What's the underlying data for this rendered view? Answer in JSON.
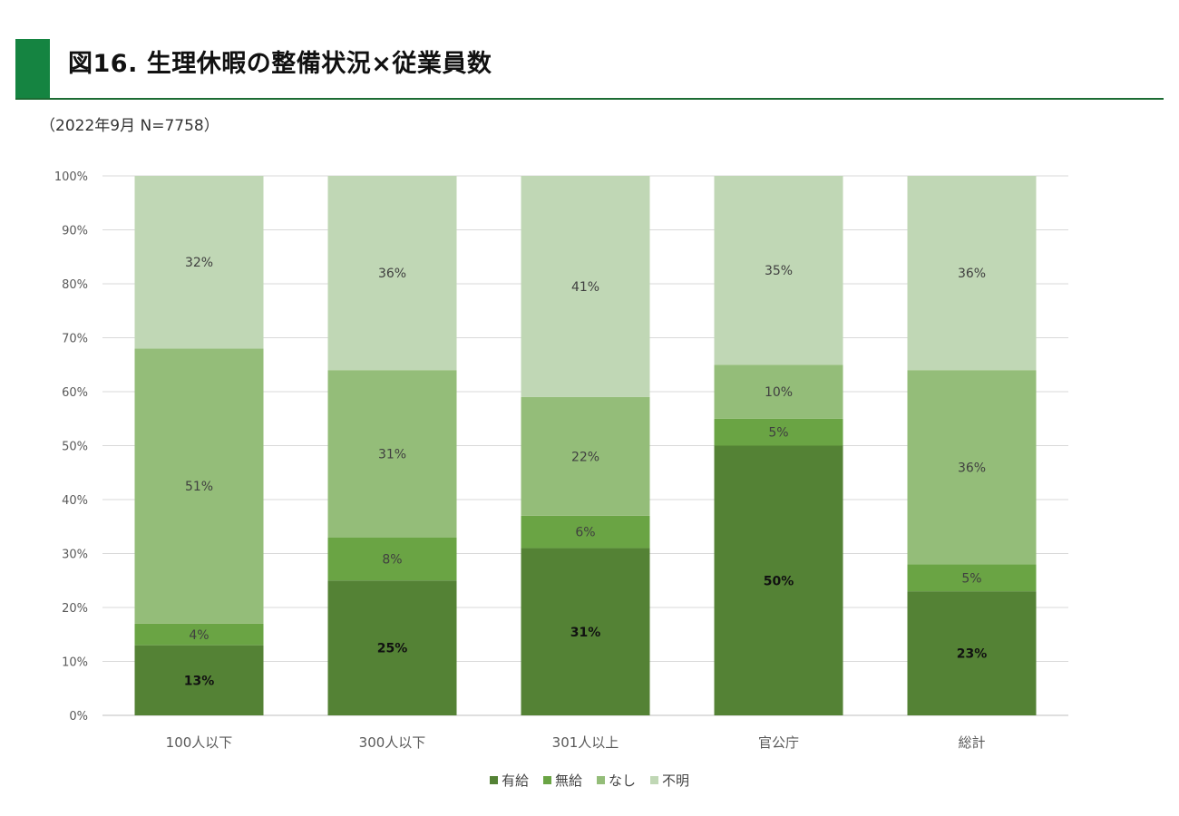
{
  "header": {
    "title": "図16. 生理休暇の整備状況×従業員数",
    "subtitle": "（2022年9月 N=7758）",
    "accent_color": "#158441"
  },
  "chart_data": {
    "type": "bar",
    "stacked": true,
    "categories": [
      "100人以下",
      "300人以下",
      "301人以上",
      "官公庁",
      "総計"
    ],
    "series": [
      {
        "name": "有給",
        "color": "#548235",
        "values": [
          13,
          25,
          31,
          50,
          23
        ],
        "labels": [
          "13%",
          "25%",
          "31%",
          "50%",
          "23%"
        ]
      },
      {
        "name": "無給",
        "color": "#6aa444",
        "values": [
          4,
          8,
          6,
          5,
          5
        ],
        "labels": [
          "4%",
          "8%",
          "6%",
          "5%",
          "5%"
        ]
      },
      {
        "name": "なし",
        "color": "#94bd79",
        "values": [
          51,
          31,
          22,
          10,
          36
        ],
        "labels": [
          "51%",
          "31%",
          "22%",
          "10%",
          "36%"
        ]
      },
      {
        "name": "不明",
        "color": "#c0d7b5",
        "values": [
          32,
          36,
          41,
          35,
          36
        ],
        "labels": [
          "32%",
          "36%",
          "41%",
          "35%",
          "36%"
        ]
      }
    ],
    "ylim": [
      0,
      100
    ],
    "yticks": [
      "0%",
      "10%",
      "20%",
      "30%",
      "40%",
      "50%",
      "60%",
      "70%",
      "80%",
      "90%",
      "100%"
    ],
    "grid": true,
    "legend": "bottom"
  }
}
